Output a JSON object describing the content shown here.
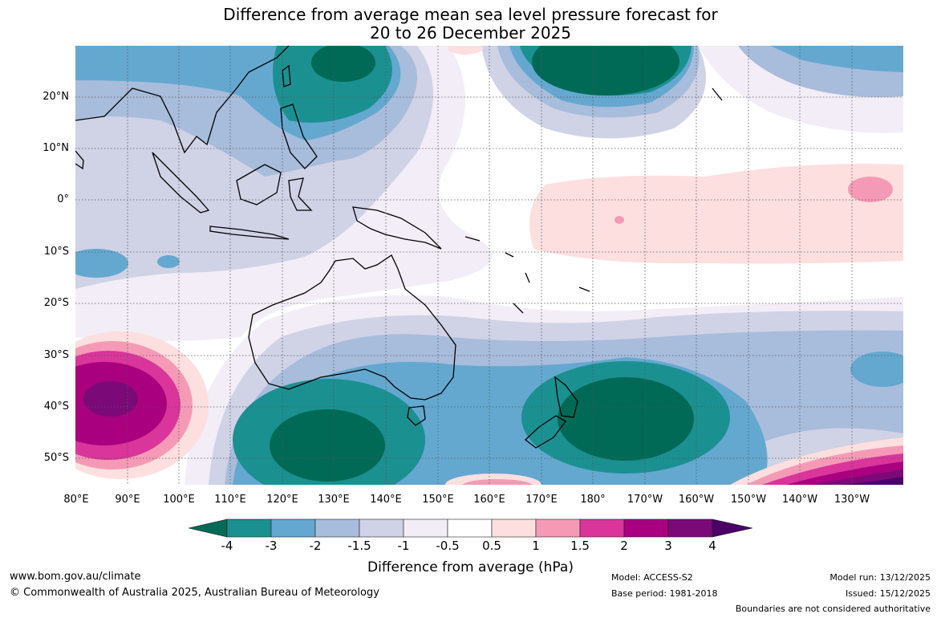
{
  "title": {
    "line1": "Difference from average mean sea level pressure forecast for",
    "line2": "20 to 26 December 2025"
  },
  "map": {
    "lat_labels": [
      "20°N",
      "10°N",
      "0°",
      "10°S",
      "20°S",
      "30°S",
      "40°S",
      "50°S"
    ],
    "lon_labels": [
      "80°E",
      "90°E",
      "100°E",
      "110°E",
      "120°E",
      "130°E",
      "140°E",
      "150°E",
      "160°E",
      "170°E",
      "180°",
      "170°W",
      "160°W",
      "150°W",
      "140°W",
      "130°W"
    ]
  },
  "colorbar": {
    "ticks": [
      "-4",
      "-3",
      "-2",
      "-1.5",
      "-1",
      "-0.5",
      "0.5",
      "1",
      "1.5",
      "2",
      "3",
      "4"
    ],
    "colors": [
      "#006a56",
      "#1b9091",
      "#64a8d0",
      "#a8bcdc",
      "#d0d2e6",
      "#f2edf6",
      "#ffffff",
      "#fddfe0",
      "#f59ab6",
      "#d9359b",
      "#a8007f",
      "#7b0a78",
      "#4a0066"
    ],
    "label": "Difference from average (hPa)"
  },
  "footer": {
    "website": "www.bom.gov.au/climate",
    "copyright": "© Commonwealth of Australia 2025, Australian Bureau of Meteorology",
    "model": "Model: ACCESS-S2",
    "base_period": "Base period: 1981-2018",
    "model_run": "Model run: 13/12/2025",
    "issued": "Issued: 15/12/2025",
    "disclaimer": "Boundaries are not considered authoritative"
  }
}
